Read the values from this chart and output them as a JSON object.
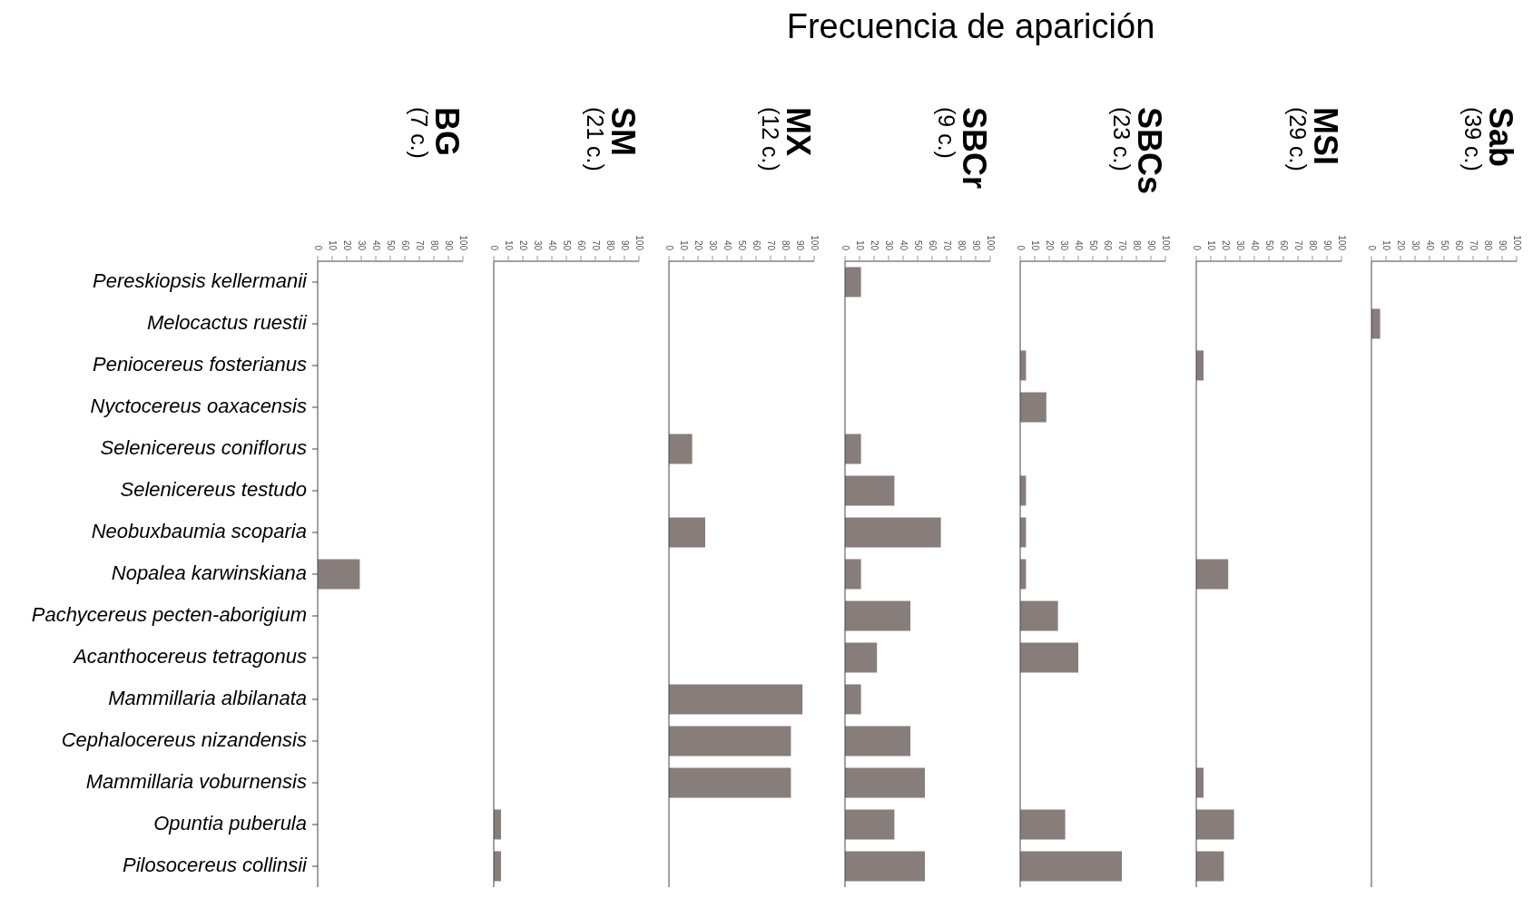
{
  "chart_data": [
    {
      "type": "bar",
      "title": "BG",
      "subtitle": "(7 c.)",
      "annotations": [
        "Frecuencia de aparición"
      ],
      "orientation": "horizontal",
      "color": "#877d7a",
      "categories": [
        "Pereskiopsis kellermanii",
        "Melocactus ruestii",
        "Peniocereus fosterianus",
        "Nyctocereus oaxacensis",
        "Selenicereus coniflorus",
        "Selenicereus testudo",
        "Neobuxbaumia scoparia",
        "Nopalea karwinskiana",
        "Pachycereus pecten-aborigium",
        "Acanthocereus tetragonus",
        "Mammillaria albilanata",
        "Cephalocereus nizandensis",
        "Mammillaria voburnensis",
        "Opuntia puberula",
        "Pilosocereus collinsii"
      ],
      "values": [
        0,
        0,
        0,
        0,
        0,
        0,
        0,
        29,
        0,
        0,
        0,
        0,
        0,
        0,
        0
      ],
      "xlim": [
        0,
        100
      ],
      "xticks": [
        0,
        10,
        20,
        30,
        40,
        50,
        60,
        70,
        80,
        90,
        100
      ]
    },
    {
      "type": "bar",
      "title": "SM",
      "subtitle": "(21 c.)",
      "orientation": "horizontal",
      "color": "#877d7a",
      "tick_labels": "x",
      "categories": [
        null,
        null,
        null,
        null,
        null,
        null,
        null,
        null,
        null,
        null,
        null,
        null,
        null,
        null,
        null
      ],
      "values": [
        0,
        0,
        0,
        0,
        0,
        0,
        0,
        0,
        0,
        0,
        0,
        0,
        0,
        5,
        5
      ],
      "xlim": [
        0,
        100
      ],
      "xticks": [
        0,
        10,
        20,
        30,
        40,
        50,
        60,
        70,
        80,
        90,
        100
      ]
    },
    {
      "type": "bar",
      "title": "MX",
      "subtitle": "(12 c.)",
      "orientation": "horizontal",
      "color": "#877d7a",
      "tick_labels": "x",
      "categories": [
        null,
        null,
        null,
        null,
        null,
        null,
        null,
        null,
        null,
        null,
        null,
        null,
        null,
        null,
        null
      ],
      "values": [
        0,
        0,
        0,
        0,
        16,
        0,
        25,
        0,
        0,
        0,
        92,
        84,
        84,
        0,
        0
      ],
      "xlim": [
        0,
        100
      ],
      "xticks": [
        0,
        10,
        20,
        30,
        40,
        50,
        60,
        70,
        80,
        90,
        100
      ]
    },
    {
      "type": "bar",
      "title": "SBCr",
      "subtitle": "(9 c.)",
      "orientation": "horizontal",
      "color": "#877d7a",
      "tick_labels": "x",
      "categories": [
        null,
        null,
        null,
        null,
        null,
        null,
        null,
        null,
        null,
        null,
        null,
        null,
        null,
        null,
        null
      ],
      "values": [
        11,
        0,
        0,
        0,
        11,
        34,
        66,
        11,
        45,
        22,
        11,
        45,
        55,
        34,
        55
      ],
      "xlim": [
        0,
        100
      ],
      "xticks": [
        0,
        10,
        20,
        30,
        40,
        50,
        60,
        70,
        80,
        90,
        100
      ]
    },
    {
      "type": "bar",
      "title": "SBCs",
      "subtitle": "(23 c.)",
      "orientation": "horizontal",
      "color": "#877d7a",
      "tick_labels": "x",
      "categories": [
        null,
        null,
        null,
        null,
        null,
        null,
        null,
        null,
        null,
        null,
        null,
        null,
        null,
        null,
        null
      ],
      "values": [
        0,
        0,
        4,
        18,
        0,
        4,
        4,
        4,
        26,
        40,
        0,
        0,
        0,
        31,
        70
      ],
      "xlim": [
        0,
        100
      ],
      "xticks": [
        0,
        10,
        20,
        30,
        40,
        50,
        60,
        70,
        80,
        90,
        100
      ]
    },
    {
      "type": "bar",
      "title": "MSI",
      "subtitle": "(29 c.)",
      "orientation": "horizontal",
      "color": "#877d7a",
      "tick_labels": "x",
      "categories": [
        null,
        null,
        null,
        null,
        null,
        null,
        null,
        null,
        null,
        null,
        null,
        null,
        null,
        null,
        null
      ],
      "values": [
        0,
        0,
        5,
        0,
        0,
        0,
        0,
        22,
        0,
        0,
        0,
        0,
        5,
        26,
        19
      ],
      "xlim": [
        0,
        100
      ],
      "xticks": [
        0,
        10,
        20,
        30,
        40,
        50,
        60,
        70,
        80,
        90,
        100
      ]
    },
    {
      "type": "bar",
      "title": "Sab",
      "subtitle": "(39 c.)",
      "orientation": "horizontal",
      "color": "#877d7a",
      "tick_labels": "x",
      "categories": [
        null,
        null,
        null,
        null,
        null,
        null,
        null,
        null,
        null,
        null,
        null,
        null,
        null,
        null,
        null
      ],
      "values": [
        0,
        6,
        0,
        0,
        0,
        0,
        0,
        0,
        0,
        0,
        0,
        0,
        0,
        0,
        0
      ],
      "xlim": [
        0,
        100
      ],
      "xticks": [
        0,
        10,
        20,
        30,
        40,
        50,
        60,
        70,
        80,
        90,
        100
      ]
    }
  ]
}
